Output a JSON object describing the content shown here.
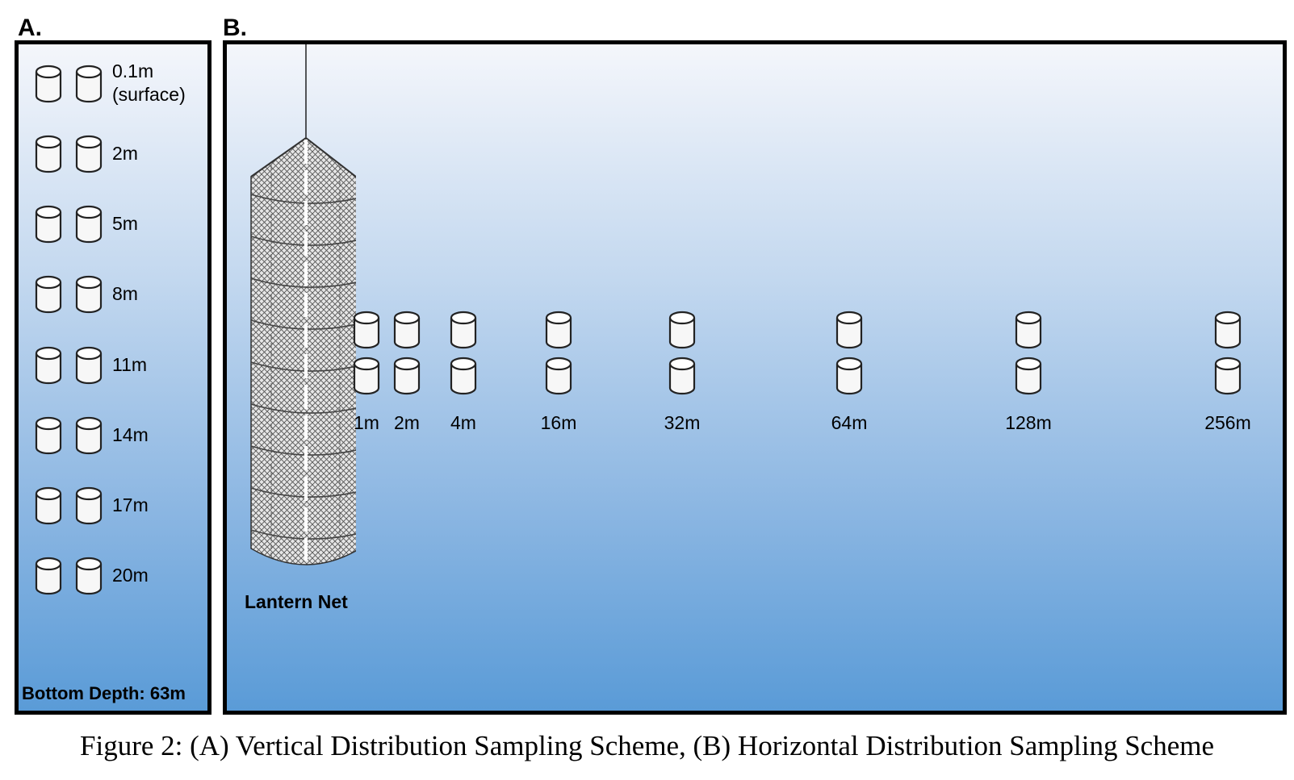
{
  "panel_a": {
    "letter": "A.",
    "depths": [
      {
        "line1": "0.1m",
        "line2": "(surface)"
      },
      {
        "line1": "2m",
        "line2": ""
      },
      {
        "line1": "5m",
        "line2": ""
      },
      {
        "line1": "8m",
        "line2": ""
      },
      {
        "line1": "11m",
        "line2": ""
      },
      {
        "line1": "14m",
        "line2": ""
      },
      {
        "line1": "17m",
        "line2": ""
      },
      {
        "line1": "20m",
        "line2": ""
      }
    ],
    "bottom_label": "Bottom Depth: 63m"
  },
  "panel_b": {
    "letter": "B.",
    "net_label": "Lantern Net",
    "distances": [
      "1m",
      "2m",
      "4m",
      "16m",
      "32m",
      "64m",
      "128m",
      "256m"
    ]
  },
  "colors": {
    "water_top": "#f4f6fb",
    "water_bottom": "#5a9bd7",
    "border": "#000000"
  },
  "icons": {
    "sample_container": "cylinder-icon",
    "net": "lantern-net-icon"
  },
  "caption": "Figure 2: (A) Vertical Distribution Sampling Scheme, (B) Horizontal Distribution Sampling Scheme"
}
